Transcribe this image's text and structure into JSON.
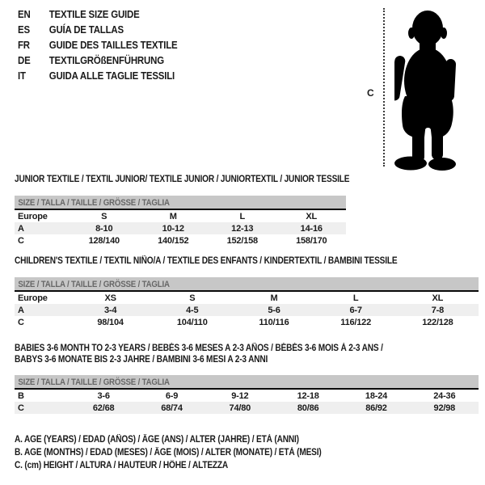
{
  "header": {
    "languages": [
      {
        "code": "EN",
        "title": "TEXTILE SIZE GUIDE"
      },
      {
        "code": "ES",
        "title": "GUÍA DE TALLAS"
      },
      {
        "code": "FR",
        "title": "GUIDE DES TAILLES TEXTILE"
      },
      {
        "code": "DE",
        "title": "TEXTILGRÖßENFÜHRUNG"
      },
      {
        "code": "IT",
        "title": "GUIDA ALLE TAGLIE TESSILI"
      }
    ]
  },
  "figure": {
    "label": "C",
    "icon": "toddler-silhouette-icon",
    "color": "#000000"
  },
  "size_bar_label": "SIZE / TALLA / TAILLE / GRÖSSE / TAGLIA",
  "sections": [
    {
      "title": "JUNIOR TEXTILE / TEXTIL JUNIOR/ TEXTILE JUNIOR / JUNIORTEXTIL / JUNIOR TESSILE",
      "title2": "",
      "rows": [
        {
          "label": "Europe",
          "shade": false,
          "cells": [
            "S",
            "M",
            "L",
            "XL"
          ]
        },
        {
          "label": "A",
          "shade": true,
          "cells": [
            "8-10",
            "10-12",
            "12-13",
            "14-16"
          ]
        },
        {
          "label": "C",
          "shade": false,
          "cells": [
            "128/140",
            "140/152",
            "152/158",
            "158/170"
          ]
        }
      ]
    },
    {
      "title": "CHILDREN'S TEXTILE / TEXTIL NIÑO/A / TEXTILE DES ENFANTS / KINDERTEXTIL / BAMBINI TESSILE",
      "title2": "",
      "rows": [
        {
          "label": "Europe",
          "shade": false,
          "cells": [
            "XS",
            "S",
            "M",
            "L",
            "XL"
          ]
        },
        {
          "label": "A",
          "shade": true,
          "cells": [
            "3-4",
            "4-5",
            "5-6",
            "6-7",
            "7-8"
          ]
        },
        {
          "label": "C",
          "shade": false,
          "cells": [
            "98/104",
            "104/110",
            "110/116",
            "116/122",
            "122/128"
          ]
        }
      ]
    },
    {
      "title": "BABIES 3-6 MONTH TO 2-3 YEARS / BEBÉS 3-6 MESES A 2-3 AÑOS / BÉBÉS 3-6 MOIS À 2-3 ANS /",
      "title2": "BABYS 3-6 MONATE BIS 2-3 JAHRE / BAMBINI 3-6 MESI A 2-3 ANNI",
      "rows": [
        {
          "label": "B",
          "shade": false,
          "cells": [
            "3-6",
            "6-9",
            "9-12",
            "12-18",
            "18-24",
            "24-36"
          ]
        },
        {
          "label": "C",
          "shade": true,
          "cells": [
            "62/68",
            "68/74",
            "74/80",
            "80/86",
            "86/92",
            "92/98"
          ]
        }
      ]
    }
  ],
  "legend": [
    "A. AGE (YEARS) / EDAD (AÑOS) / ÂGE (ANS) / ALTER (JAHRE) / ETÀ (ANNI)",
    "B. AGE (MONTHS) / EDAD (MESES) / ÂGE (MOIS) / ALTER (MONATE) / ETÀ (MESI)",
    "C. (cm) HEIGHT / ALTURA / HAUTEUR / HÖHE / ALTEZZA"
  ],
  "colors": {
    "size_bar_bg": "#c7c7c7",
    "size_bar_text": "#676767",
    "shaded_row_bg": "#efefef",
    "text": "#1a1a1a",
    "silhouette": "#000000"
  }
}
